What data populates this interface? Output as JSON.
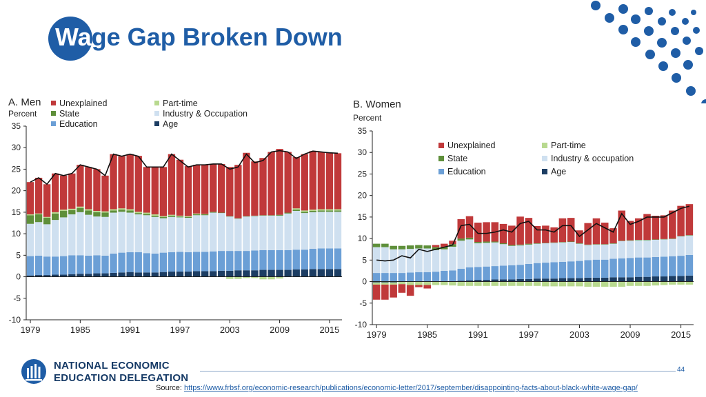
{
  "slide": {
    "title_highlight": "Wa",
    "title_rest": "ge Gap Broken Down",
    "page_number": "44",
    "org_line1": "NATIONAL ECONOMIC",
    "org_line2": "EDUCATION DELEGATION",
    "source_label": "Source:",
    "source_url": "https://www.frbsf.org/economic-research/publications/economic-letter/2017/september/disappointing-facts-about-black-white-wage-gap/"
  },
  "colors": {
    "brand_blue": "#1f5da6",
    "unexplained": "#c0393a",
    "state": "#5e8f3a",
    "education": "#6b9fd6",
    "part_time": "#b8d98f",
    "industry": "#cfe0f0",
    "age": "#1c3d63"
  },
  "chart_data": [
    {
      "id": "men",
      "type": "bar",
      "title": "A. Men",
      "ylabel": "Percent",
      "ylim": [
        -10,
        35
      ],
      "yticks": [
        35,
        30,
        25,
        20,
        15,
        10,
        5,
        0,
        -5,
        -10
      ],
      "xtick_labels": [
        "1979",
        "1985",
        "1991",
        "1997",
        "2003",
        "2009",
        "2015"
      ],
      "xtick_years": [
        1979,
        1985,
        1991,
        1997,
        2003,
        2009,
        2015
      ],
      "legend": {
        "position": "top",
        "entries": [
          {
            "key": "unexplained",
            "label": "Unexplained"
          },
          {
            "key": "part_time",
            "label": "Part-time"
          },
          {
            "key": "state",
            "label": "State"
          },
          {
            "key": "industry",
            "label": "Industry & Occupation"
          },
          {
            "key": "education",
            "label": "Education"
          },
          {
            "key": "age",
            "label": "Age"
          }
        ]
      },
      "years": [
        1979,
        1980,
        1981,
        1982,
        1983,
        1984,
        1985,
        1986,
        1987,
        1988,
        1989,
        1990,
        1991,
        1992,
        1993,
        1994,
        1995,
        1996,
        1997,
        1998,
        1999,
        2000,
        2001,
        2002,
        2003,
        2004,
        2005,
        2006,
        2007,
        2008,
        2009,
        2010,
        2011,
        2012,
        2013,
        2014,
        2015,
        2016
      ],
      "total": [
        22,
        23,
        21.5,
        24,
        23.5,
        24,
        26,
        25.5,
        25,
        23.5,
        28.5,
        28,
        28.5,
        28,
        25.5,
        25.5,
        25.5,
        28.5,
        27,
        25.5,
        26,
        26,
        26.2,
        26.2,
        25,
        25.5,
        28.5,
        26.5,
        27,
        29,
        29.3,
        29,
        27.5,
        28.5,
        29.2,
        29,
        28.8,
        28.7
      ],
      "series": [
        {
          "key": "age",
          "name": "Age",
          "values": [
            0.3,
            0.4,
            0.4,
            0.5,
            0.5,
            0.6,
            0.7,
            0.7,
            0.8,
            0.8,
            0.9,
            1.0,
            1.1,
            1.0,
            1.0,
            1.0,
            1.1,
            1.2,
            1.2,
            1.2,
            1.3,
            1.3,
            1.3,
            1.4,
            1.4,
            1.5,
            1.5,
            1.5,
            1.6,
            1.6,
            1.6,
            1.6,
            1.7,
            1.7,
            1.8,
            1.8,
            1.8,
            1.8
          ]
        },
        {
          "key": "education",
          "name": "Education",
          "values": [
            4.5,
            4.5,
            4.3,
            4.2,
            4.3,
            4.4,
            4.3,
            4.2,
            4.2,
            4.1,
            4.5,
            4.6,
            4.6,
            4.7,
            4.5,
            4.4,
            4.5,
            4.5,
            4.6,
            4.5,
            4.5,
            4.5,
            4.6,
            4.6,
            4.6,
            4.5,
            4.5,
            4.6,
            4.6,
            4.6,
            4.6,
            4.6,
            4.6,
            4.6,
            4.7,
            4.8,
            4.8,
            4.8
          ]
        },
        {
          "key": "industry",
          "name": "Industry & Occupation",
          "values": [
            7.5,
            7.8,
            7.5,
            8.5,
            9.0,
            9.5,
            10.0,
            9.5,
            9.0,
            9.0,
            9.5,
            9.5,
            9.2,
            8.8,
            8.8,
            8.5,
            8.0,
            8.2,
            8.0,
            8.0,
            8.5,
            8.5,
            9.0,
            8.8,
            8.0,
            7.5,
            8.0,
            8.0,
            8.0,
            8.0,
            8.0,
            8.5,
            9.0,
            8.5,
            8.5,
            8.5,
            8.5,
            8.5
          ]
        },
        {
          "key": "state",
          "name": "State",
          "values": [
            2.0,
            1.8,
            1.5,
            1.5,
            1.5,
            1.0,
            1.0,
            1.0,
            1.0,
            1.0,
            0.5,
            0.5,
            0.5,
            0.3,
            0.3,
            0.3,
            0.3,
            0.3,
            0.2,
            0.2,
            0.2,
            0.2,
            0.2,
            0.1,
            0.1,
            0.1,
            0.1,
            0.1,
            0.1,
            0.1,
            0.2,
            0.2,
            0.3,
            0.3,
            0.3,
            0.3,
            0.3,
            0.3
          ]
        },
        {
          "key": "part_time",
          "name": "Part-time",
          "values": [
            0.2,
            0.2,
            0.2,
            0.3,
            0.3,
            0.3,
            0.3,
            0.3,
            0.3,
            0.3,
            0.3,
            0.3,
            0.3,
            0.3,
            0.3,
            0.3,
            0.2,
            0.2,
            0.2,
            0.2,
            0.2,
            0.1,
            0,
            0,
            -0.5,
            -0.5,
            -0.3,
            -0.3,
            -0.6,
            -0.6,
            -0.4,
            0,
            0.3,
            0.3,
            0.3,
            0.3,
            0.3,
            0.3
          ]
        },
        {
          "key": "unexplained",
          "name": "Unexplained",
          "values": [
            7.5,
            8.3,
            7.6,
            9.0,
            7.9,
            8.2,
            9.7,
            9.8,
            9.7,
            8.3,
            12.8,
            12.1,
            12.8,
            13.0,
            10.6,
            11.0,
            11.4,
            14.1,
            13.0,
            11.6,
            11.3,
            11.4,
            11.1,
            11.3,
            11.4,
            12.4,
            14.7,
            12.6,
            13.3,
            14.7,
            15.3,
            14.1,
            11.9,
            13.1,
            13.6,
            13.3,
            13.1,
            13.0
          ]
        }
      ]
    },
    {
      "id": "women",
      "type": "bar",
      "title": "B. Women",
      "ylabel": "Percent",
      "ylim": [
        -10,
        35
      ],
      "yticks": [
        35,
        30,
        25,
        20,
        15,
        10,
        5,
        0,
        -5,
        -10
      ],
      "xtick_labels": [
        "1979",
        "1985",
        "1991",
        "1997",
        "2003",
        "2009",
        "2015"
      ],
      "xtick_years": [
        1979,
        1985,
        1991,
        1997,
        2003,
        2009,
        2015
      ],
      "legend": {
        "position": "top",
        "entries": [
          {
            "key": "unexplained",
            "label": "Unexplained"
          },
          {
            "key": "part_time",
            "label": "Part-time"
          },
          {
            "key": "state",
            "label": "State"
          },
          {
            "key": "industry",
            "label": "Industry & occupation"
          },
          {
            "key": "education",
            "label": "Education"
          },
          {
            "key": "age",
            "label": "Age"
          }
        ]
      },
      "years": [
        1979,
        1980,
        1981,
        1982,
        1983,
        1984,
        1985,
        1986,
        1987,
        1988,
        1989,
        1990,
        1991,
        1992,
        1993,
        1994,
        1995,
        1996,
        1997,
        1998,
        1999,
        2000,
        2001,
        2002,
        2003,
        2004,
        2005,
        2006,
        2007,
        2008,
        2009,
        2010,
        2011,
        2012,
        2013,
        2014,
        2015,
        2016
      ],
      "total": [
        5,
        4.8,
        5,
        6,
        5.5,
        7.5,
        7,
        7.5,
        8,
        8.5,
        13,
        13.3,
        11.2,
        11.2,
        11.5,
        12,
        11.5,
        13.5,
        14,
        12,
        12,
        11.5,
        13,
        13,
        10.5,
        12,
        13.5,
        12.5,
        11.5,
        15.8,
        13.3,
        14,
        15,
        15,
        15,
        16,
        17,
        17.5
      ],
      "series": [
        {
          "key": "age",
          "name": "Age",
          "values": [
            -0.2,
            -0.2,
            -0.2,
            -0.1,
            -0.1,
            0,
            0,
            0,
            0.1,
            0.1,
            0.2,
            0.3,
            0.4,
            0.4,
            0.5,
            0.5,
            0.5,
            0.6,
            0.6,
            0.7,
            0.7,
            0.7,
            0.8,
            0.8,
            0.8,
            0.9,
            0.9,
            0.9,
            1.0,
            1.0,
            1.0,
            1.1,
            1.1,
            1.2,
            1.2,
            1.3,
            1.3,
            1.4
          ]
        },
        {
          "key": "education",
          "name": "Education",
          "values": [
            2.0,
            2.0,
            2.0,
            2.0,
            2.1,
            2.2,
            2.2,
            2.3,
            2.4,
            2.5,
            2.8,
            3.0,
            3.0,
            3.1,
            3.1,
            3.2,
            3.3,
            3.3,
            3.5,
            3.6,
            3.7,
            3.8,
            3.8,
            3.9,
            4.0,
            4.1,
            4.2,
            4.2,
            4.3,
            4.4,
            4.5,
            4.5,
            4.5,
            4.5,
            4.6,
            4.6,
            4.7,
            4.8
          ]
        },
        {
          "key": "industry",
          "name": "Industry & occupation",
          "values": [
            6.0,
            6.0,
            5.5,
            5.5,
            5.5,
            5.5,
            5.5,
            5.0,
            5.0,
            5.5,
            6.5,
            6.5,
            5.5,
            5.5,
            5.5,
            5.0,
            4.5,
            4.5,
            4.5,
            4.5,
            4.5,
            4.5,
            4.5,
            4.5,
            4.0,
            3.5,
            3.5,
            3.5,
            3.5,
            4.0,
            4.0,
            4.0,
            4.0,
            4.0,
            4.0,
            4.0,
            4.5,
            4.5
          ]
        },
        {
          "key": "state",
          "name": "State",
          "values": [
            0.8,
            0.8,
            0.8,
            0.8,
            0.8,
            0.8,
            0.7,
            0.7,
            0.6,
            0.6,
            0.5,
            0.4,
            0.3,
            0.3,
            0.2,
            0.2,
            0.2,
            0.2,
            0.2,
            0.1,
            0.1,
            0.1,
            0.1,
            0.1,
            0.1,
            0.1,
            0.1,
            0.1,
            0.1,
            0.1,
            0.1,
            0.1,
            0.1,
            0.1,
            0.1,
            0.1,
            0.1,
            0.1
          ]
        },
        {
          "key": "part_time",
          "name": "Part-time",
          "values": [
            -0.5,
            -0.5,
            -0.5,
            -0.5,
            -0.7,
            -0.8,
            -0.8,
            -0.8,
            -0.8,
            -0.9,
            -1.0,
            -1.0,
            -1.0,
            -1.0,
            -1.0,
            -1.0,
            -1.0,
            -1.0,
            -1.0,
            -1.0,
            -1.1,
            -1.1,
            -1.1,
            -1.1,
            -1.1,
            -1.2,
            -1.2,
            -1.2,
            -1.2,
            -1.2,
            -1.0,
            -1.0,
            -1.0,
            -0.9,
            -0.8,
            -0.7,
            -0.7,
            -0.7
          ]
        },
        {
          "key": "unexplained",
          "name": "Unexplained",
          "values": [
            -3.5,
            -3.5,
            -3.0,
            -2.0,
            -2.5,
            -0.5,
            -0.8,
            0.5,
            0.7,
            0.8,
            4.5,
            5.0,
            4.5,
            4.5,
            4.5,
            4.5,
            4.5,
            6.5,
            6.0,
            4.0,
            4.0,
            3.5,
            5.5,
            5.5,
            3.0,
            5.0,
            6.0,
            5.0,
            3.5,
            7.0,
            4.5,
            5.0,
            6.0,
            5.5,
            5.5,
            6.5,
            7.0,
            7.2
          ]
        }
      ]
    }
  ]
}
